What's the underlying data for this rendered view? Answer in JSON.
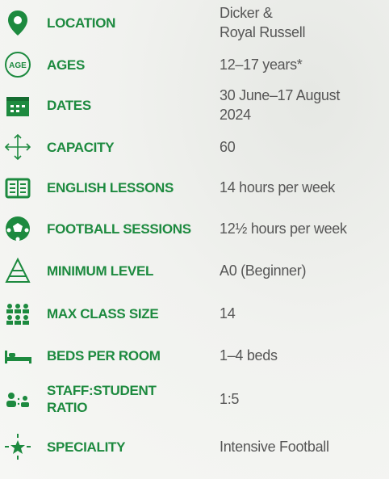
{
  "rows": [
    {
      "label": [
        "LOCATION"
      ],
      "value": [
        "Dicker &",
        "Royal Russell"
      ]
    },
    {
      "label": [
        "AGES"
      ],
      "value": [
        "12–17 years*"
      ]
    },
    {
      "label": [
        "DATES"
      ],
      "value": [
        "30 June–17 August",
        "2024"
      ]
    },
    {
      "label": [
        "CAPACITY"
      ],
      "value": [
        "60"
      ]
    },
    {
      "label": [
        "ENGLISH LESSONS"
      ],
      "value": [
        "14 hours per week"
      ]
    },
    {
      "label": [
        "FOOTBALL SESSIONS"
      ],
      "value": [
        "12½ hours per week"
      ]
    },
    {
      "label": [
        "MINIMUM LEVEL"
      ],
      "value": [
        "A0 (Beginner)"
      ]
    },
    {
      "label": [
        "MAX CLASS SIZE"
      ],
      "value": [
        "14"
      ]
    },
    {
      "label": [
        "BEDS PER ROOM"
      ],
      "value": [
        "1–4 beds"
      ]
    },
    {
      "label": [
        "STAFF:STUDENT",
        "RATIO"
      ],
      "value": [
        "1:5"
      ]
    },
    {
      "label": [
        "SPECIALITY"
      ],
      "value": [
        "Intensive Football"
      ]
    }
  ],
  "icons": {
    "ages": "AGE"
  }
}
